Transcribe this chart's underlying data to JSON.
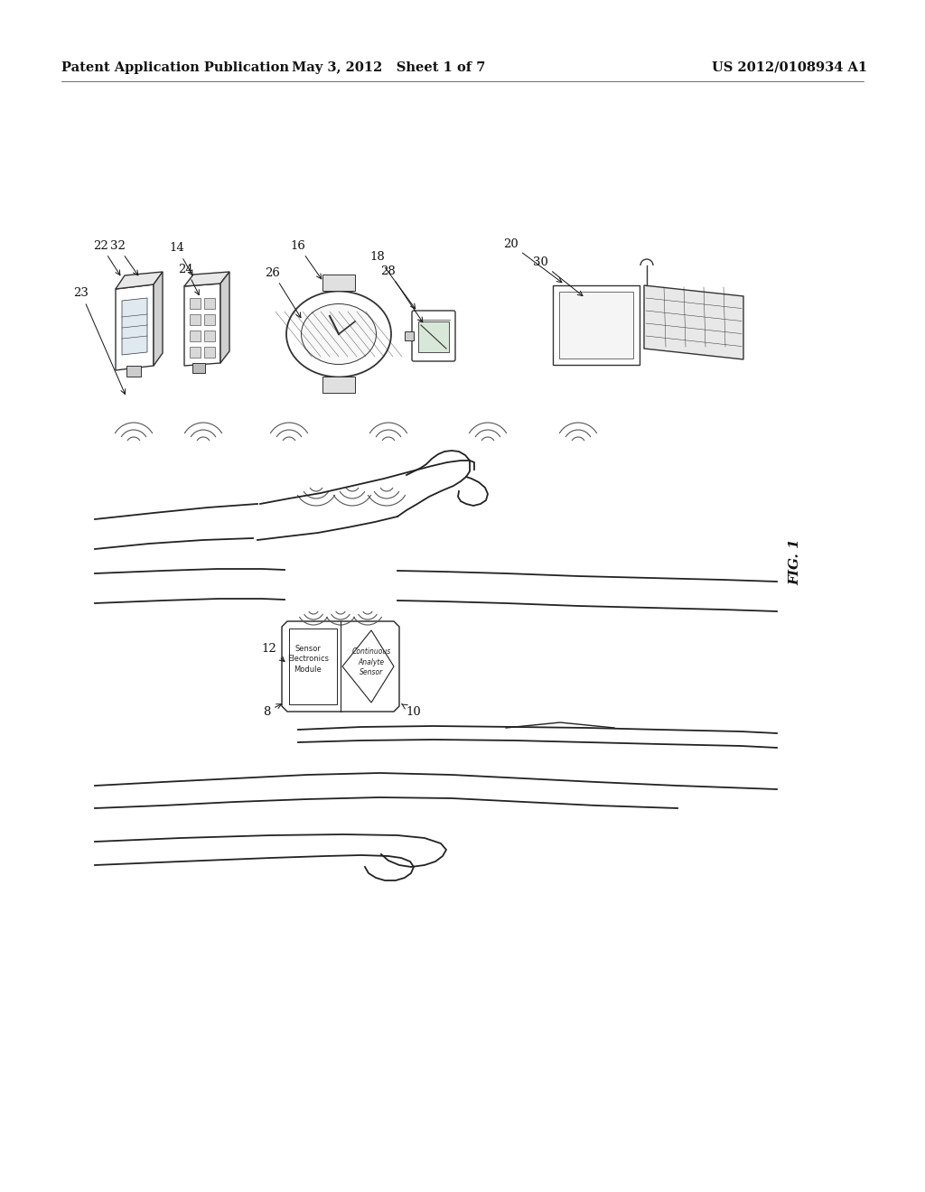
{
  "header_left": "Patent Application Publication",
  "header_mid": "May 3, 2012   Sheet 1 of 7",
  "header_right": "US 2012/0108934 A1",
  "fig_label": "FIG. 1",
  "bg_color": "#ffffff",
  "line_color": "#222222",
  "header_fontsize": 10.5,
  "label_fontsize": 9.5,
  "fig_label_fontsize": 11
}
